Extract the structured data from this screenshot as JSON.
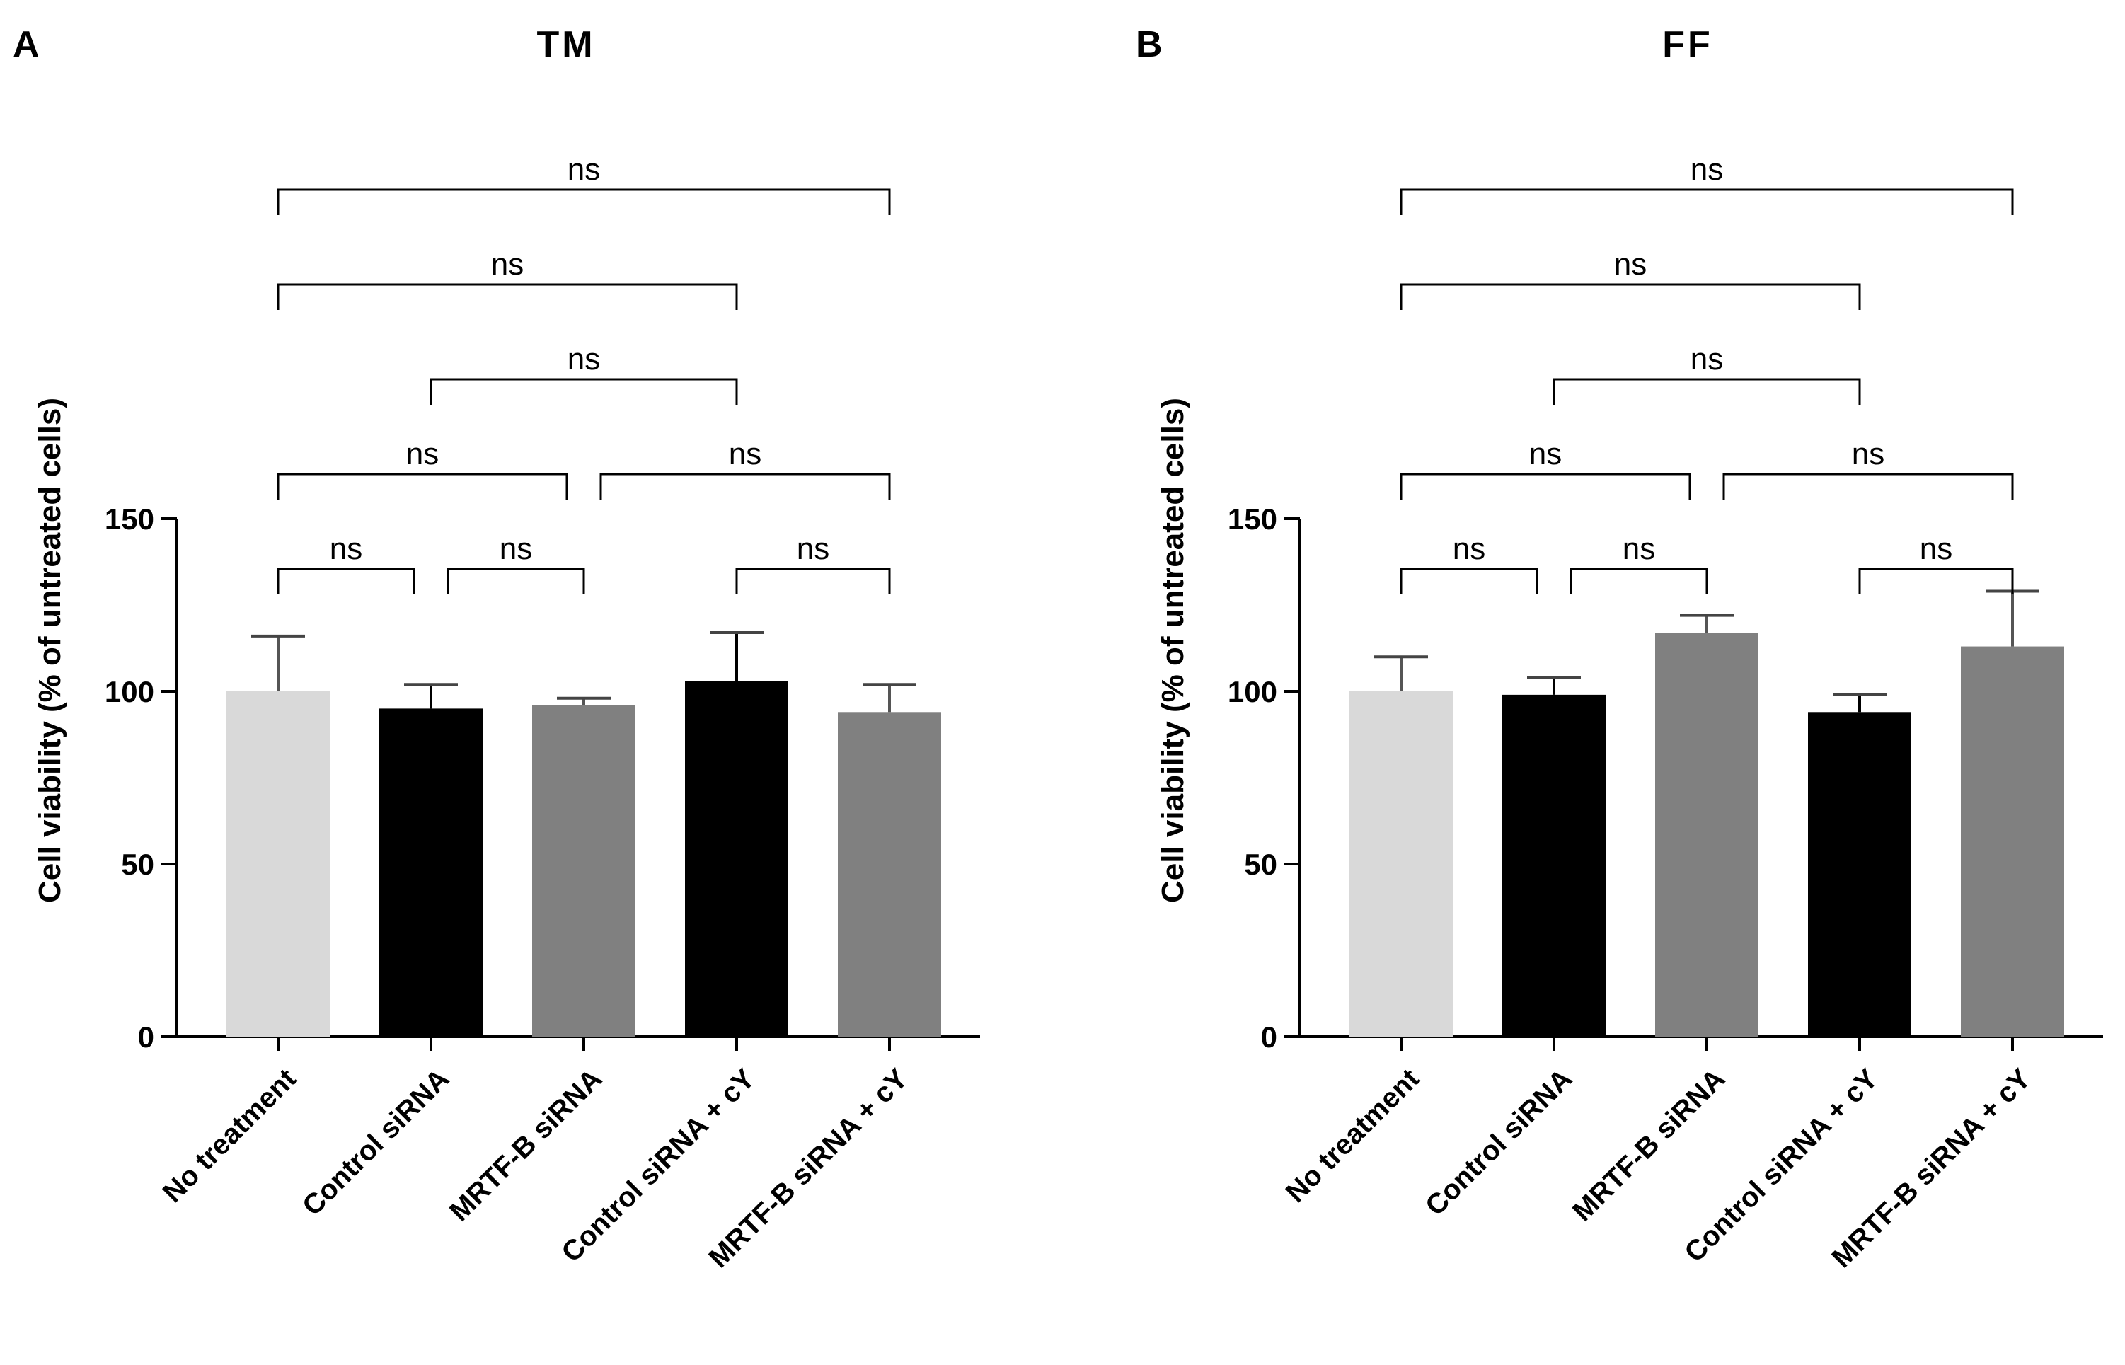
{
  "chart_data": [
    {
      "type": "bar",
      "panel": "A",
      "title": "TM",
      "ylabel": "Cell viability (% of untreated cells)",
      "xlabel": "",
      "ylim": [
        0,
        150
      ],
      "yticks": [
        0,
        50,
        100,
        150
      ],
      "categories": [
        "No treatment",
        "Control siRNA",
        "MRTF-B siRNA",
        "Control siRNA + cY",
        "MRTF-B siRNA + cY"
      ],
      "values": [
        100,
        95,
        96,
        103,
        94
      ],
      "errors": [
        16,
        7,
        2,
        14,
        8
      ],
      "colors": [
        "#d9d9d9",
        "#000000",
        "#808080",
        "#000000",
        "#808080"
      ],
      "significance": [
        {
          "from": 0,
          "to": 1,
          "label": "ns",
          "level": 0
        },
        {
          "from": 1,
          "to": 2,
          "label": "ns",
          "level": 0
        },
        {
          "from": 3,
          "to": 4,
          "label": "ns",
          "level": 0
        },
        {
          "from": 0,
          "to": 2,
          "label": "ns",
          "level": 1
        },
        {
          "from": 2,
          "to": 4,
          "label": "ns",
          "level": 1
        },
        {
          "from": 1,
          "to": 3,
          "label": "ns",
          "level": 2
        },
        {
          "from": 0,
          "to": 3,
          "label": "ns",
          "level": 3
        },
        {
          "from": 0,
          "to": 4,
          "label": "ns",
          "level": 4
        }
      ]
    },
    {
      "type": "bar",
      "panel": "B",
      "title": "FF",
      "ylabel": "Cell viability (% of untreated cells)",
      "xlabel": "",
      "ylim": [
        0,
        150
      ],
      "yticks": [
        0,
        50,
        100,
        150
      ],
      "categories": [
        "No treatment",
        "Control siRNA",
        "MRTF-B siRNA",
        "Control siRNA + cY",
        "MRTF-B siRNA + cY"
      ],
      "values": [
        100,
        99,
        117,
        94,
        113
      ],
      "errors": [
        10,
        5,
        5,
        5,
        16
      ],
      "colors": [
        "#d9d9d9",
        "#000000",
        "#808080",
        "#000000",
        "#808080"
      ],
      "significance": [
        {
          "from": 0,
          "to": 1,
          "label": "ns",
          "level": 0
        },
        {
          "from": 1,
          "to": 2,
          "label": "ns",
          "level": 0
        },
        {
          "from": 3,
          "to": 4,
          "label": "ns",
          "level": 0
        },
        {
          "from": 0,
          "to": 2,
          "label": "ns",
          "level": 1
        },
        {
          "from": 2,
          "to": 4,
          "label": "ns",
          "level": 1
        },
        {
          "from": 1,
          "to": 3,
          "label": "ns",
          "level": 2
        },
        {
          "from": 0,
          "to": 3,
          "label": "ns",
          "level": 3
        },
        {
          "from": 0,
          "to": 4,
          "label": "ns",
          "level": 4
        }
      ]
    }
  ]
}
